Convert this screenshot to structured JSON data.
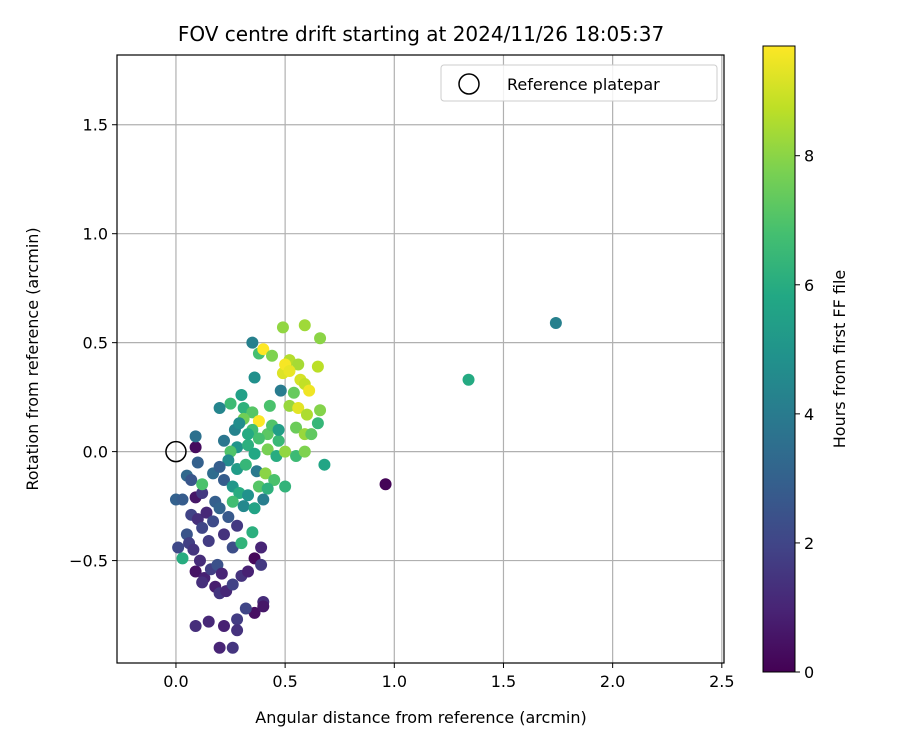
{
  "chart_data": {
    "type": "scatter",
    "title": "FOV centre drift starting at 2024/11/26 18:05:37",
    "xlabel": "Angular distance from reference (arcmin)",
    "ylabel": "Rotation from reference (arcmin)",
    "xlim": [
      -0.27,
      2.51
    ],
    "ylim": [
      -0.97,
      1.82
    ],
    "xticks": [
      0.0,
      0.5,
      1.0,
      1.5,
      2.0,
      2.5
    ],
    "xtick_labels": [
      "0.0",
      "0.5",
      "1.0",
      "1.5",
      "2.0",
      "2.5"
    ],
    "yticks": [
      -0.5,
      0.0,
      0.5,
      1.0,
      1.5
    ],
    "ytick_labels": [
      "−0.5",
      "0.0",
      "0.5",
      "1.0",
      "1.5"
    ],
    "grid": true,
    "legend": {
      "position": "top-right",
      "entries": [
        {
          "label": "Reference platepar",
          "marker": "open-circle"
        }
      ]
    },
    "reference_point": {
      "x": 0.0,
      "y": 0.0
    },
    "colorbar": {
      "label": "Hours from first FF file",
      "colormap": "viridis",
      "range": [
        0,
        9.7
      ],
      "ticks": [
        0,
        2,
        4,
        6,
        8
      ],
      "tick_labels": [
        "0",
        "2",
        "4",
        "6",
        "8"
      ]
    },
    "points": [
      {
        "x": 0.96,
        "y": -0.15,
        "h": 0.1
      },
      {
        "x": 1.34,
        "y": 0.33,
        "h": 5.9
      },
      {
        "x": 1.74,
        "y": 0.59,
        "h": 4.2
      },
      {
        "x": 0.09,
        "y": 0.02,
        "h": 0.3
      },
      {
        "x": 0.09,
        "y": 0.07,
        "h": 3.6
      },
      {
        "x": 0.05,
        "y": -0.11,
        "h": 3.3
      },
      {
        "x": 0.1,
        "y": -0.05,
        "h": 3.0
      },
      {
        "x": 0.0,
        "y": -0.22,
        "h": 3.0
      },
      {
        "x": 0.03,
        "y": -0.22,
        "h": 2.8
      },
      {
        "x": 0.07,
        "y": -0.13,
        "h": 2.6
      },
      {
        "x": 0.09,
        "y": -0.21,
        "h": 0.6
      },
      {
        "x": 0.12,
        "y": -0.19,
        "h": 1.6
      },
      {
        "x": 0.01,
        "y": -0.44,
        "h": 2.1
      },
      {
        "x": 0.05,
        "y": -0.38,
        "h": 2.5
      },
      {
        "x": 0.06,
        "y": -0.42,
        "h": 1.8
      },
      {
        "x": 0.08,
        "y": -0.45,
        "h": 1.5
      },
      {
        "x": 0.07,
        "y": -0.29,
        "h": 1.9
      },
      {
        "x": 0.1,
        "y": -0.31,
        "h": 1.3
      },
      {
        "x": 0.12,
        "y": -0.35,
        "h": 2.0
      },
      {
        "x": 0.14,
        "y": -0.28,
        "h": 1.1
      },
      {
        "x": 0.15,
        "y": -0.41,
        "h": 1.7
      },
      {
        "x": 0.17,
        "y": -0.32,
        "h": 2.2
      },
      {
        "x": 0.18,
        "y": -0.23,
        "h": 2.9
      },
      {
        "x": 0.2,
        "y": -0.26,
        "h": 3.1
      },
      {
        "x": 0.22,
        "y": -0.38,
        "h": 1.4
      },
      {
        "x": 0.24,
        "y": -0.3,
        "h": 2.7
      },
      {
        "x": 0.26,
        "y": -0.44,
        "h": 2.3
      },
      {
        "x": 0.28,
        "y": -0.34,
        "h": 1.6
      },
      {
        "x": 0.3,
        "y": -0.42,
        "h": 6.3
      },
      {
        "x": 0.35,
        "y": -0.37,
        "h": 6.1
      },
      {
        "x": 0.03,
        "y": -0.49,
        "h": 6.0
      },
      {
        "x": 0.09,
        "y": -0.55,
        "h": 0.5
      },
      {
        "x": 0.11,
        "y": -0.5,
        "h": 1.2
      },
      {
        "x": 0.13,
        "y": -0.58,
        "h": 0.9
      },
      {
        "x": 0.16,
        "y": -0.54,
        "h": 1.8
      },
      {
        "x": 0.19,
        "y": -0.52,
        "h": 2.4
      },
      {
        "x": 0.21,
        "y": -0.56,
        "h": 1.0
      },
      {
        "x": 0.18,
        "y": -0.62,
        "h": 0.8
      },
      {
        "x": 0.12,
        "y": -0.6,
        "h": 1.3
      },
      {
        "x": 0.2,
        "y": -0.65,
        "h": 1.5
      },
      {
        "x": 0.23,
        "y": -0.64,
        "h": 1.1
      },
      {
        "x": 0.26,
        "y": -0.61,
        "h": 1.9
      },
      {
        "x": 0.3,
        "y": -0.57,
        "h": 1.4
      },
      {
        "x": 0.33,
        "y": -0.55,
        "h": 0.9
      },
      {
        "x": 0.36,
        "y": -0.49,
        "h": 0.2
      },
      {
        "x": 0.39,
        "y": -0.44,
        "h": 1.0
      },
      {
        "x": 0.39,
        "y": -0.52,
        "h": 1.6
      },
      {
        "x": 0.36,
        "y": -0.74,
        "h": 0.4
      },
      {
        "x": 0.32,
        "y": -0.72,
        "h": 2.0
      },
      {
        "x": 0.4,
        "y": -0.69,
        "h": 1.2
      },
      {
        "x": 0.4,
        "y": -0.71,
        "h": 0.6
      },
      {
        "x": 0.28,
        "y": -0.77,
        "h": 1.7
      },
      {
        "x": 0.28,
        "y": -0.82,
        "h": 1.4
      },
      {
        "x": 0.22,
        "y": -0.8,
        "h": 0.9
      },
      {
        "x": 0.15,
        "y": -0.78,
        "h": 1.1
      },
      {
        "x": 0.09,
        "y": -0.8,
        "h": 1.3
      },
      {
        "x": 0.2,
        "y": -0.9,
        "h": 1.0
      },
      {
        "x": 0.26,
        "y": -0.9,
        "h": 1.5
      },
      {
        "x": 0.35,
        "y": 0.5,
        "h": 4.2
      },
      {
        "x": 0.38,
        "y": 0.45,
        "h": 6.8
      },
      {
        "x": 0.4,
        "y": 0.47,
        "h": 9.7
      },
      {
        "x": 0.44,
        "y": 0.44,
        "h": 7.8
      },
      {
        "x": 0.49,
        "y": 0.57,
        "h": 8.1
      },
      {
        "x": 0.59,
        "y": 0.58,
        "h": 8.3
      },
      {
        "x": 0.66,
        "y": 0.52,
        "h": 8.0
      },
      {
        "x": 0.52,
        "y": 0.42,
        "h": 8.6
      },
      {
        "x": 0.56,
        "y": 0.4,
        "h": 8.4
      },
      {
        "x": 0.65,
        "y": 0.39,
        "h": 8.7
      },
      {
        "x": 0.36,
        "y": 0.34,
        "h": 4.8
      },
      {
        "x": 0.49,
        "y": 0.36,
        "h": 9.2
      },
      {
        "x": 0.5,
        "y": 0.4,
        "h": 9.6
      },
      {
        "x": 0.52,
        "y": 0.37,
        "h": 9.4
      },
      {
        "x": 0.57,
        "y": 0.33,
        "h": 9.1
      },
      {
        "x": 0.59,
        "y": 0.31,
        "h": 8.8
      },
      {
        "x": 0.61,
        "y": 0.28,
        "h": 9.5
      },
      {
        "x": 0.48,
        "y": 0.28,
        "h": 4.0
      },
      {
        "x": 0.54,
        "y": 0.27,
        "h": 7.4
      },
      {
        "x": 0.3,
        "y": 0.26,
        "h": 5.5
      },
      {
        "x": 0.25,
        "y": 0.22,
        "h": 6.6
      },
      {
        "x": 0.2,
        "y": 0.2,
        "h": 4.4
      },
      {
        "x": 0.31,
        "y": 0.2,
        "h": 6.2
      },
      {
        "x": 0.35,
        "y": 0.18,
        "h": 7.1
      },
      {
        "x": 0.43,
        "y": 0.21,
        "h": 6.9
      },
      {
        "x": 0.52,
        "y": 0.21,
        "h": 8.2
      },
      {
        "x": 0.56,
        "y": 0.2,
        "h": 9.3
      },
      {
        "x": 0.6,
        "y": 0.17,
        "h": 8.5
      },
      {
        "x": 0.66,
        "y": 0.19,
        "h": 7.9
      },
      {
        "x": 0.65,
        "y": 0.13,
        "h": 6.4
      },
      {
        "x": 0.38,
        "y": 0.14,
        "h": 9.7
      },
      {
        "x": 0.31,
        "y": 0.15,
        "h": 7.6
      },
      {
        "x": 0.27,
        "y": 0.1,
        "h": 4.3
      },
      {
        "x": 0.35,
        "y": 0.1,
        "h": 6.7
      },
      {
        "x": 0.42,
        "y": 0.08,
        "h": 7.2
      },
      {
        "x": 0.47,
        "y": 0.05,
        "h": 6.5
      },
      {
        "x": 0.55,
        "y": 0.11,
        "h": 7.5
      },
      {
        "x": 0.59,
        "y": 0.08,
        "h": 8.2
      },
      {
        "x": 0.62,
        "y": 0.08,
        "h": 7.3
      },
      {
        "x": 0.22,
        "y": 0.05,
        "h": 3.8
      },
      {
        "x": 0.28,
        "y": 0.02,
        "h": 5.0
      },
      {
        "x": 0.25,
        "y": 0.0,
        "h": 7.0
      },
      {
        "x": 0.33,
        "y": 0.03,
        "h": 6.1
      },
      {
        "x": 0.36,
        "y": -0.01,
        "h": 5.8
      },
      {
        "x": 0.42,
        "y": 0.01,
        "h": 7.7
      },
      {
        "x": 0.46,
        "y": -0.02,
        "h": 6.0
      },
      {
        "x": 0.5,
        "y": 0.0,
        "h": 8.1
      },
      {
        "x": 0.55,
        "y": -0.02,
        "h": 6.6
      },
      {
        "x": 0.59,
        "y": 0.0,
        "h": 7.8
      },
      {
        "x": 0.68,
        "y": -0.06,
        "h": 5.7
      },
      {
        "x": 0.24,
        "y": -0.04,
        "h": 4.6
      },
      {
        "x": 0.28,
        "y": -0.08,
        "h": 5.3
      },
      {
        "x": 0.32,
        "y": -0.06,
        "h": 6.4
      },
      {
        "x": 0.37,
        "y": -0.09,
        "h": 3.9
      },
      {
        "x": 0.41,
        "y": -0.1,
        "h": 8.0
      },
      {
        "x": 0.45,
        "y": -0.13,
        "h": 6.9
      },
      {
        "x": 0.5,
        "y": -0.16,
        "h": 6.3
      },
      {
        "x": 0.22,
        "y": -0.13,
        "h": 2.8
      },
      {
        "x": 0.26,
        "y": -0.16,
        "h": 5.1
      },
      {
        "x": 0.29,
        "y": -0.19,
        "h": 6.0
      },
      {
        "x": 0.33,
        "y": -0.2,
        "h": 4.9
      },
      {
        "x": 0.38,
        "y": -0.16,
        "h": 7.1
      },
      {
        "x": 0.42,
        "y": -0.17,
        "h": 6.2
      },
      {
        "x": 0.26,
        "y": -0.23,
        "h": 6.7
      },
      {
        "x": 0.31,
        "y": -0.25,
        "h": 4.5
      },
      {
        "x": 0.36,
        "y": -0.26,
        "h": 5.6
      },
      {
        "x": 0.4,
        "y": -0.22,
        "h": 4.1
      },
      {
        "x": 0.12,
        "y": -0.15,
        "h": 6.9
      },
      {
        "x": 0.17,
        "y": -0.1,
        "h": 3.4
      },
      {
        "x": 0.2,
        "y": -0.07,
        "h": 2.9
      },
      {
        "x": 0.29,
        "y": 0.13,
        "h": 4.7
      },
      {
        "x": 0.33,
        "y": 0.08,
        "h": 5.9
      },
      {
        "x": 0.38,
        "y": 0.06,
        "h": 6.8
      },
      {
        "x": 0.44,
        "y": 0.12,
        "h": 7.0
      },
      {
        "x": 0.47,
        "y": 0.1,
        "h": 5.4
      }
    ]
  }
}
